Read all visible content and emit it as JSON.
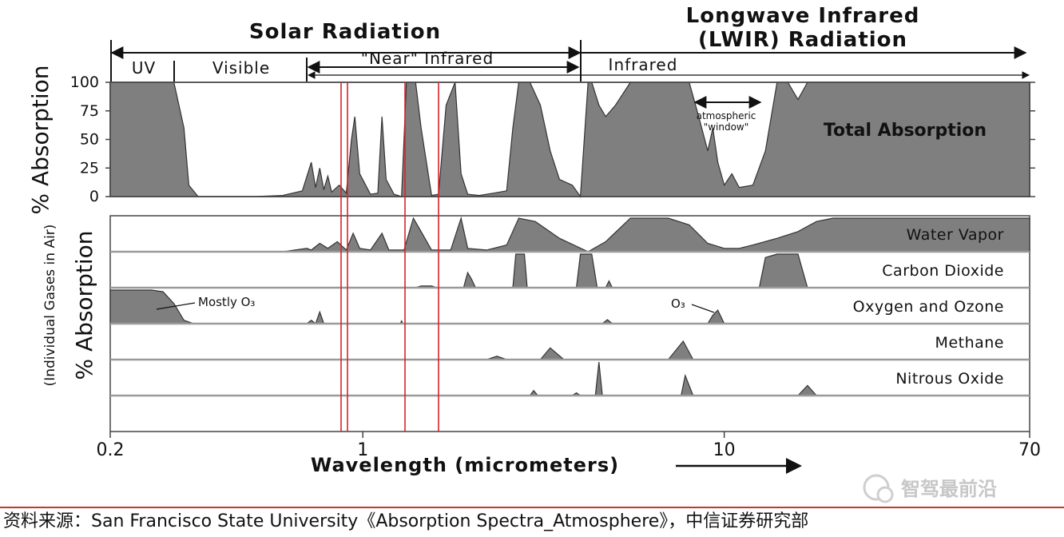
{
  "chart_data": {
    "type": "area",
    "title": "",
    "regions": {
      "solar": "Solar Radiation",
      "lwir_line1": "Longwave Infrared",
      "lwir_line2": "(LWIR) Radiation",
      "uv": "UV",
      "visible": "Visible",
      "near_ir": "\"Near\" Infrared",
      "infrared": "Infrared"
    },
    "xlabel": "Wavelength (micrometers)",
    "x_scale": "log",
    "xlim": [
      0.2,
      70
    ],
    "x_ticks": [
      {
        "value": 0.2,
        "label": "0.2"
      },
      {
        "value": 1,
        "label": "1"
      },
      {
        "value": 10,
        "label": "10"
      },
      {
        "value": 70,
        "label": "70"
      }
    ],
    "total": {
      "ylabel": "% Absorption",
      "ylim": [
        0,
        100
      ],
      "y_ticks": [
        "0",
        "25",
        "50",
        "75",
        "100"
      ],
      "label": "Total Absorption",
      "window_annotation": [
        "atmospheric",
        "\"window\""
      ],
      "x": [
        0.2,
        0.3,
        0.32,
        0.33,
        0.35,
        0.5,
        0.6,
        0.68,
        0.72,
        0.74,
        0.76,
        0.78,
        0.8,
        0.82,
        0.86,
        0.9,
        0.93,
        0.95,
        0.98,
        1.05,
        1.1,
        1.13,
        1.16,
        1.22,
        1.28,
        1.32,
        1.36,
        1.4,
        1.45,
        1.55,
        1.62,
        1.7,
        1.8,
        1.87,
        1.95,
        2.1,
        2.3,
        2.5,
        2.6,
        2.7,
        2.9,
        3.1,
        3.3,
        3.5,
        3.8,
        4.0,
        4.2,
        4.3,
        4.5,
        4.7,
        5.0,
        5.5,
        6.0,
        6.5,
        7.0,
        7.5,
        8.0,
        8.5,
        9.0,
        9.3,
        9.6,
        10.0,
        10.5,
        11.0,
        12.0,
        13.0,
        14.0,
        15.0,
        16.0,
        17.0,
        18.0,
        20.0,
        25.0,
        30.0,
        40.0,
        70.0
      ],
      "y": [
        100,
        100,
        60,
        10,
        0,
        0,
        1,
        5,
        30,
        8,
        25,
        6,
        18,
        4,
        10,
        3,
        50,
        70,
        20,
        2,
        3,
        70,
        15,
        2,
        0,
        100,
        100,
        100,
        60,
        1,
        2,
        80,
        100,
        20,
        2,
        1,
        3,
        5,
        60,
        100,
        100,
        80,
        40,
        15,
        10,
        0,
        100,
        100,
        80,
        70,
        80,
        100,
        100,
        100,
        100,
        100,
        100,
        70,
        40,
        60,
        30,
        10,
        20,
        8,
        10,
        40,
        100,
        100,
        85,
        100,
        100,
        100,
        100,
        100,
        100,
        100
      ]
    },
    "gases_ylabel": "% Absorption",
    "gases_sublabel": "(Individual Gases in Air)",
    "series": [
      {
        "name": "Water Vapor",
        "x": [
          0.2,
          0.6,
          0.7,
          0.72,
          0.76,
          0.8,
          0.85,
          0.9,
          0.94,
          0.98,
          1.05,
          1.13,
          1.18,
          1.3,
          1.38,
          1.45,
          1.55,
          1.75,
          1.87,
          1.95,
          2.2,
          2.5,
          2.7,
          3.0,
          3.5,
          4.2,
          4.7,
          5.5,
          6.0,
          7.0,
          8.0,
          9.0,
          10.0,
          11.0,
          12.0,
          14.0,
          16.0,
          18.0,
          20.0,
          30.0,
          70.0
        ],
        "y": [
          0,
          0,
          10,
          5,
          25,
          10,
          30,
          5,
          55,
          10,
          5,
          55,
          5,
          5,
          100,
          60,
          5,
          5,
          100,
          10,
          5,
          20,
          100,
          90,
          40,
          0,
          30,
          100,
          100,
          100,
          80,
          25,
          10,
          10,
          20,
          40,
          60,
          90,
          100,
          100,
          100
        ]
      },
      {
        "name": "Carbon Dioxide",
        "x": [
          0.2,
          1.4,
          1.45,
          1.55,
          1.6,
          1.9,
          1.95,
          2.0,
          2.05,
          2.6,
          2.65,
          2.8,
          2.85,
          3.9,
          4.0,
          4.3,
          4.45,
          4.7,
          4.8,
          4.9,
          12.5,
          13.0,
          14.0,
          16.0,
          17.0,
          70.0
        ],
        "y": [
          0,
          0,
          5,
          5,
          0,
          0,
          45,
          25,
          0,
          0,
          100,
          100,
          0,
          0,
          100,
          100,
          0,
          0,
          20,
          0,
          0,
          90,
          100,
          100,
          0,
          0
        ]
      },
      {
        "name": "Oxygen and Ozone",
        "annotations": [
          "Mostly O₃",
          "O₃"
        ],
        "x": [
          0.2,
          0.26,
          0.28,
          0.3,
          0.32,
          0.34,
          0.7,
          0.72,
          0.74,
          0.76,
          0.78,
          1.27,
          1.28,
          1.29,
          4.6,
          4.75,
          4.9,
          9.0,
          9.3,
          9.6,
          10.0,
          70.0
        ],
        "y": [
          100,
          100,
          95,
          60,
          10,
          0,
          0,
          10,
          0,
          35,
          0,
          0,
          8,
          0,
          0,
          12,
          0,
          0,
          25,
          40,
          0,
          0
        ]
      },
      {
        "name": "Methane",
        "x": [
          0.2,
          2.2,
          2.35,
          2.5,
          3.1,
          3.3,
          3.6,
          7.0,
          7.7,
          8.2,
          70.0
        ],
        "y": [
          0,
          0,
          10,
          0,
          0,
          35,
          0,
          0,
          55,
          0,
          0
        ]
      },
      {
        "name": "Nitrous Oxide",
        "x": [
          0.2,
          2.9,
          2.97,
          3.05,
          3.8,
          3.9,
          4.0,
          4.4,
          4.5,
          4.6,
          7.6,
          7.8,
          8.2,
          16.0,
          17.0,
          18.0,
          70.0
        ],
        "y": [
          0,
          0,
          15,
          0,
          0,
          8,
          0,
          0,
          100,
          0,
          0,
          60,
          0,
          0,
          30,
          0,
          0
        ]
      }
    ],
    "grid": false,
    "legend": "none"
  },
  "watermark": "智驾最前沿",
  "footer": "资料来源：San Francisco State University《Absorption Spectra_Atmosphere》，中信证券研究部",
  "colors": {
    "fill": "#7f7f7f",
    "line": "#333333",
    "marker_lines": "#d9232d",
    "footer_rule": "#c0392b"
  }
}
